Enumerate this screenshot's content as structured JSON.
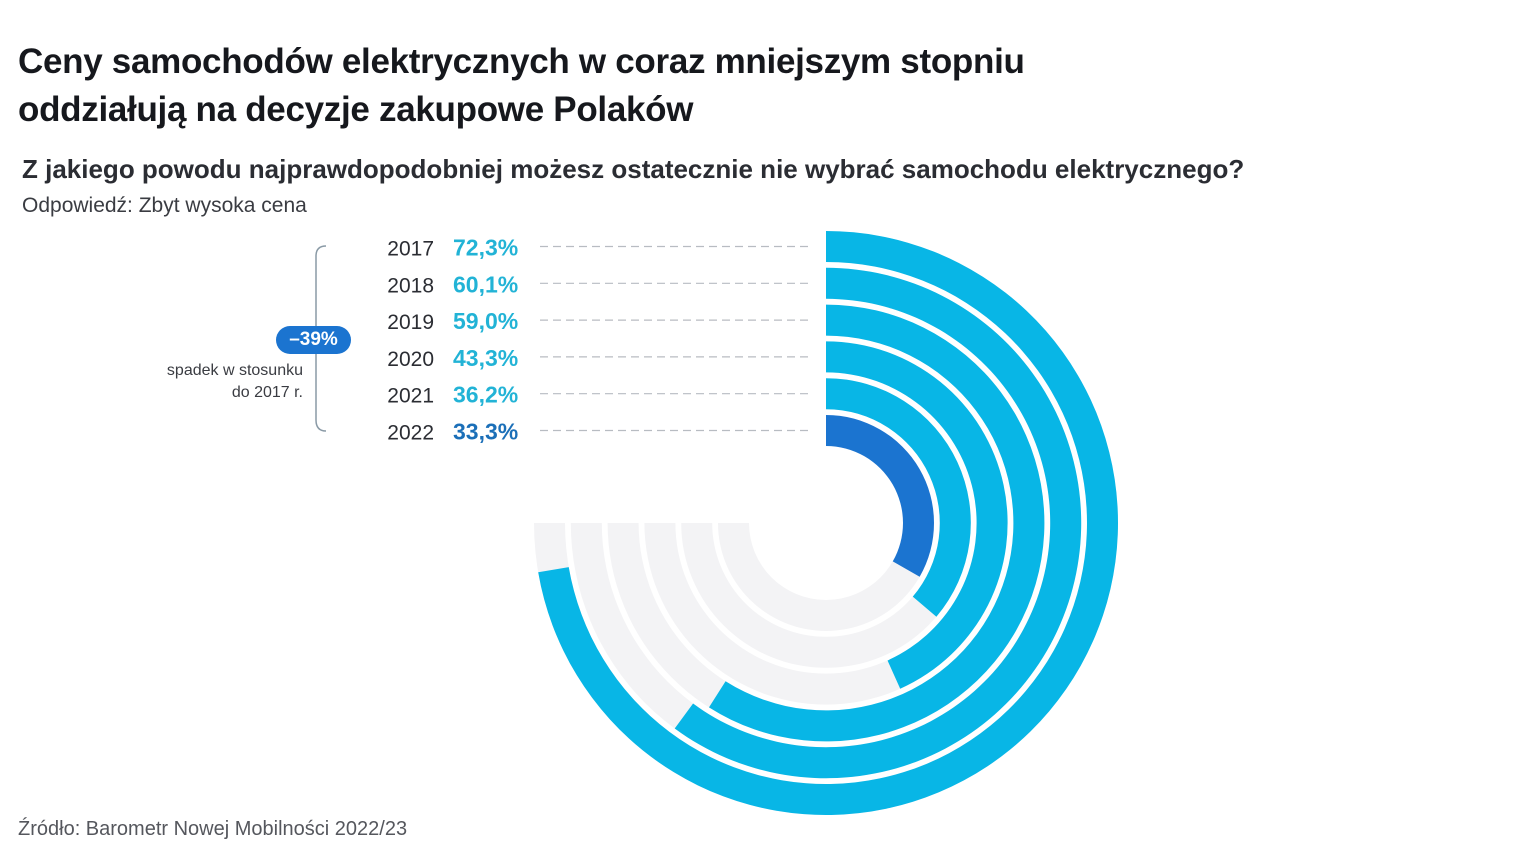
{
  "title_line1": "Ceny samochodów elektrycznych w coraz mniejszym stopniu",
  "title_line2": "oddziałują na decyzje zakupowe Polaków",
  "question": "Z jakiego powodu najprawdopodobniej możesz ostatecznie nie wybrać samochodu elektrycznego?",
  "answer": "Odpowiedź: Zbyt wysoka cena",
  "badge": "–39%",
  "note_line1": "spadek w stosunku",
  "note_line2": "do 2017 r.",
  "source": "Źródło: Barometr Nowej Mobilności 2022/23",
  "chart_data": {
    "type": "radial-bar",
    "categories": [
      "2017",
      "2018",
      "2019",
      "2020",
      "2021",
      "2022"
    ],
    "values": [
      72.3,
      60.1,
      59.0,
      43.3,
      36.2,
      33.3
    ],
    "labels": [
      "72,3%",
      "60,1%",
      "59,0%",
      "43,3%",
      "36,2%",
      "33,3%"
    ],
    "unit": "%",
    "full_circle_value": 100,
    "track_max": 75,
    "colors": {
      "bar": "#08b6e6",
      "highlight": "#1b74d0",
      "track": "#f3f3f5",
      "label": "#22b3d6",
      "highlight_label": "#1b6fb8"
    }
  }
}
